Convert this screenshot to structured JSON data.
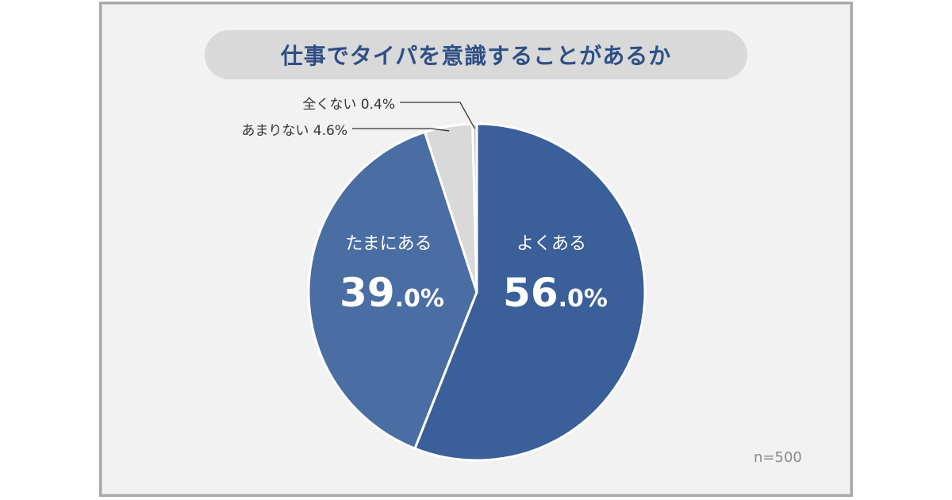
{
  "chart_data": {
    "type": "pie",
    "title": "仕事でタイパを意識することがあるか",
    "note": "n=500",
    "slices": [
      {
        "label": "よくある",
        "value": 56.0,
        "int": "56",
        "dec": ".0%",
        "color": "#3a5f99"
      },
      {
        "label": "たまにある",
        "value": 39.0,
        "int": "39",
        "dec": ".0%",
        "color": "#4a6da3"
      },
      {
        "label": "あまりない",
        "value": 4.6,
        "text": "あまりない 4.6%",
        "color": "#d9d9d9"
      },
      {
        "label": "全くない",
        "value": 0.4,
        "text": "全くない 0.4%",
        "color": "#c8c8c8"
      }
    ],
    "start": "top",
    "direction": "clockwise"
  }
}
